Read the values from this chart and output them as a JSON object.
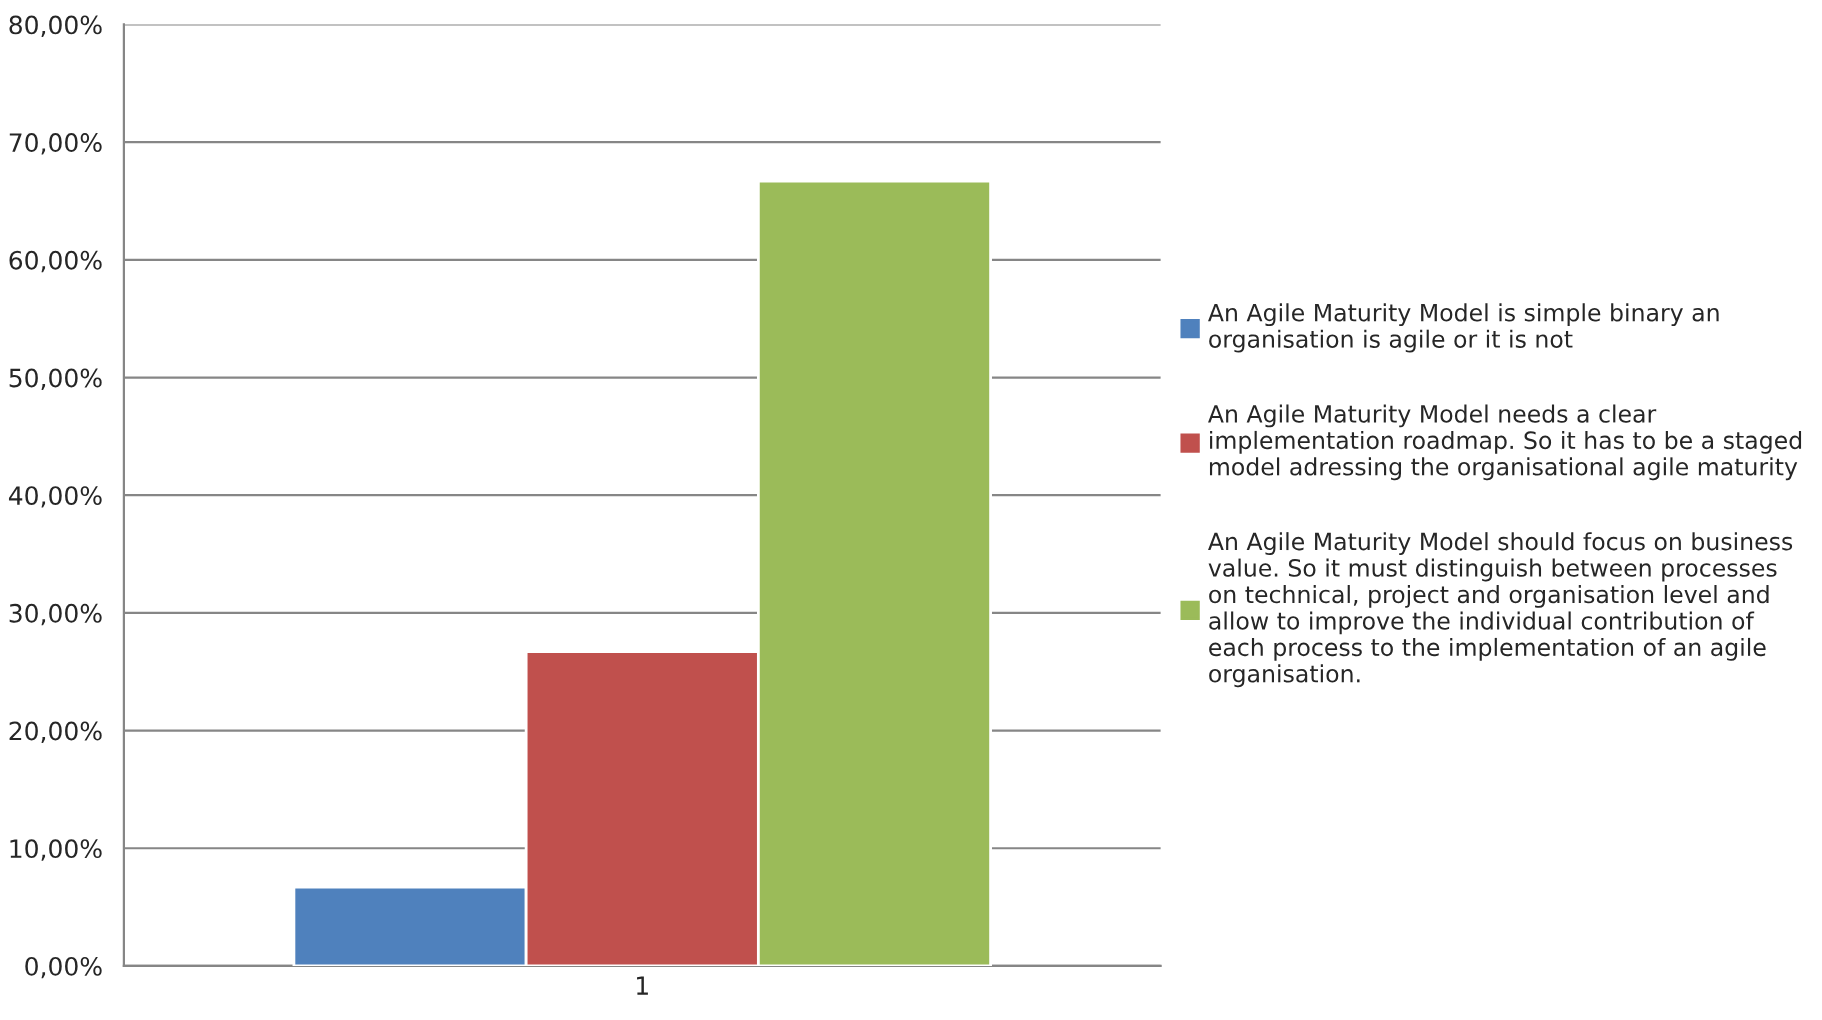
{
  "chart_data": {
    "type": "bar",
    "categories": [
      "1"
    ],
    "series": [
      {
        "name": "An Agile Maturity Model is simple binary an\norganisation is agile or it is not",
        "color": "#4f81bd",
        "values": [
          6.7
        ]
      },
      {
        "name": "An Agile Maturity Model needs a clear\nimplementation roadmap. So it has to be a staged\nmodel adressing the organisational agile maturity",
        "color": "#c0504d",
        "values": [
          26.7
        ]
      },
      {
        "name": "An Agile Maturity Model should focus on business\nvalue. So it must distinguish between processes\non technical, project and organisation level and\nallow to improve the individual contribution of\neach process to the implementation of an agile\norganisation.",
        "color": "#9bbb59",
        "values": [
          66.7
        ]
      }
    ],
    "ylim": [
      0,
      80
    ],
    "yticks": [
      {
        "value": 0,
        "label": "0,00%"
      },
      {
        "value": 10,
        "label": "10,00%"
      },
      {
        "value": 20,
        "label": "20,00%"
      },
      {
        "value": 30,
        "label": "30,00%"
      },
      {
        "value": 40,
        "label": "40,00%"
      },
      {
        "value": 50,
        "label": "50,00%"
      },
      {
        "value": 60,
        "label": "60,00%"
      },
      {
        "value": 70,
        "label": "70,00%"
      },
      {
        "value": 80,
        "label": "80,00%"
      }
    ],
    "grid": "y",
    "legend": "right"
  }
}
